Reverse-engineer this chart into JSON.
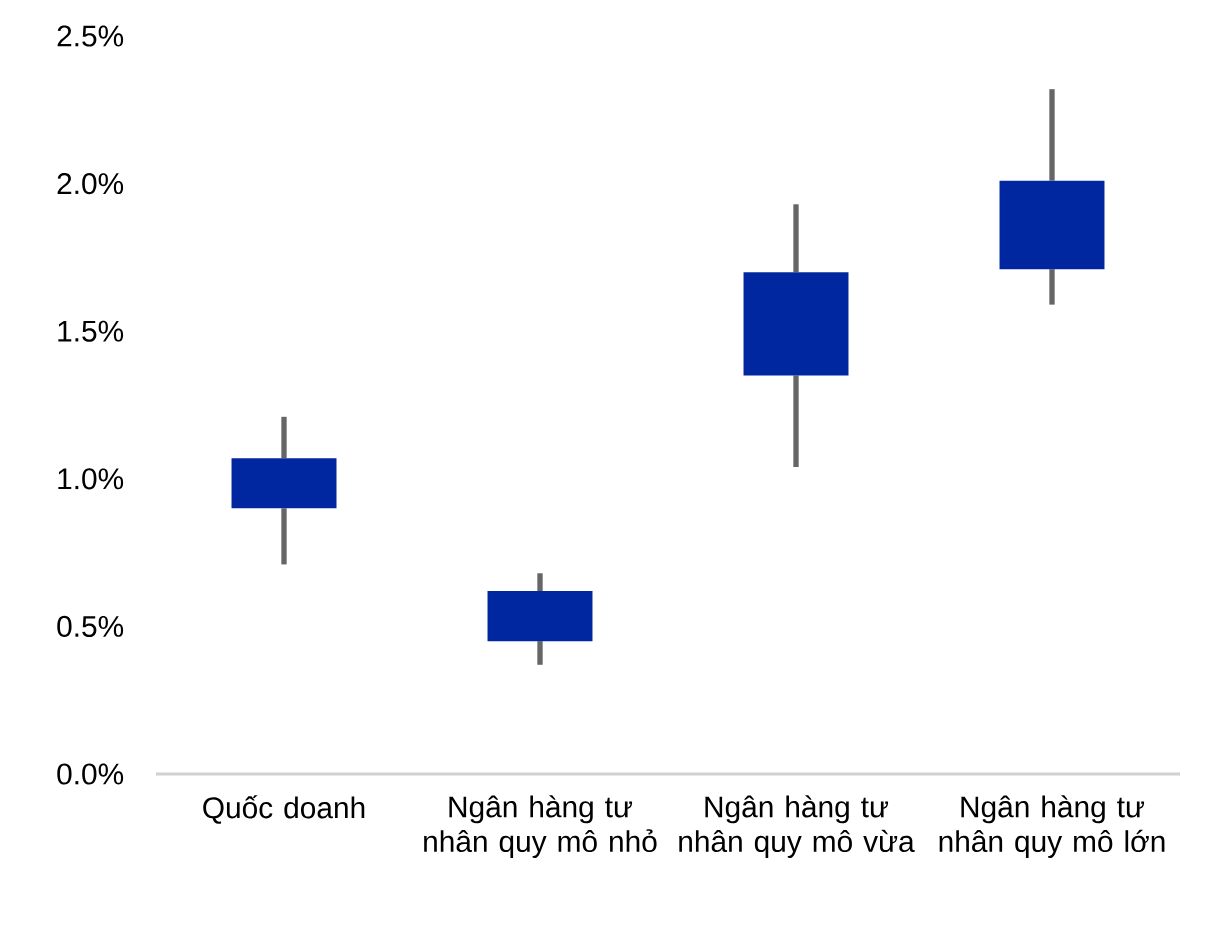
{
  "chart_data": {
    "type": "candlestick",
    "categories": [
      "Quốc doanh",
      "Ngân hàng tư nhân quy mô nhỏ",
      "Ngân hàng tư nhân quy mô vừa",
      "Ngân hàng tư nhân quy mô lớn"
    ],
    "ohlc": [
      [
        0.9,
        1.21,
        0.71,
        1.07
      ],
      [
        0.45,
        0.68,
        0.37,
        0.62
      ],
      [
        1.35,
        1.93,
        1.04,
        1.7
      ],
      [
        1.71,
        2.32,
        1.59,
        2.01
      ]
    ],
    "color": "#0027a0",
    "ylim": [
      0,
      2.5
    ],
    "yticks": [
      {
        "value": 0,
        "label": "0.0%"
      },
      {
        "value": 0.5,
        "label": "0.5%"
      },
      {
        "value": 1,
        "label": "1.0%"
      },
      {
        "value": 1.5,
        "label": "1.5%"
      },
      {
        "value": 2,
        "label": "2.0%"
      },
      {
        "value": 2.5,
        "label": "2.5%"
      }
    ],
    "grid": false
  }
}
